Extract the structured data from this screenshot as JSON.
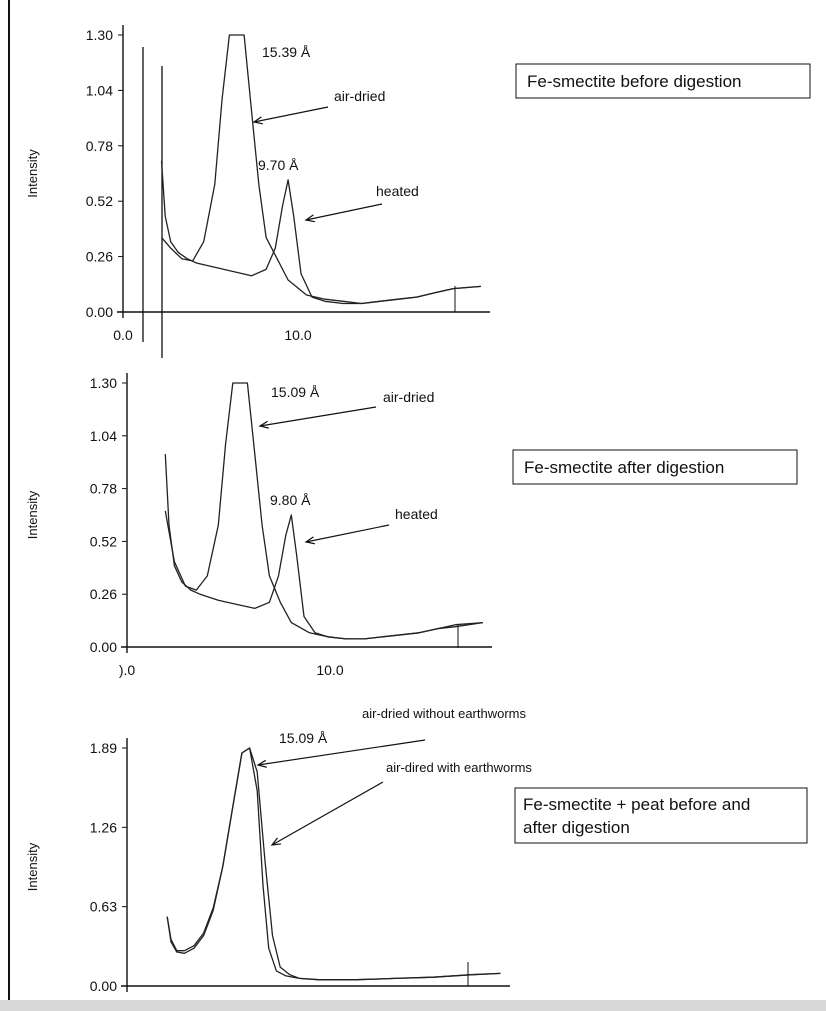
{
  "chart_data": [
    {
      "type": "line",
      "title": "",
      "xlabel": "",
      "ylabel": "Intensity",
      "xlim": [
        0.0,
        20.0
      ],
      "ylim": [
        0.0,
        1.3
      ],
      "yticks": [
        "1.30",
        "1.04",
        "0.78",
        "0.52",
        "0.26",
        "0.00"
      ],
      "xticks": [
        "0.0",
        "10.0"
      ],
      "box_label": "Fe-smectite before digestion",
      "annotations": [
        {
          "text": "15.39 Å",
          "x": 6.0,
          "y": 1.3
        },
        {
          "text": "air-dried",
          "x": 7.0,
          "y": 1.0
        },
        {
          "text": "9.70 Å",
          "x": 9.0,
          "y": 0.62
        },
        {
          "text": "heated",
          "x": 9.6,
          "y": 0.48
        }
      ],
      "series": [
        {
          "x": [
            2.1,
            2.6,
            3.2,
            3.8,
            4.4,
            5.0,
            5.4,
            5.8,
            6.2,
            6.6,
            7.0,
            7.4,
            7.8,
            8.4,
            9.0,
            10.0,
            11.0,
            12.0,
            13.0,
            14.0,
            15.0,
            16.0,
            17.0,
            18.0,
            19.5
          ],
          "y": [
            0.35,
            0.3,
            0.25,
            0.24,
            0.33,
            0.6,
            1.0,
            1.3,
            1.3,
            1.3,
            0.95,
            0.6,
            0.35,
            0.25,
            0.15,
            0.08,
            0.06,
            0.05,
            0.04,
            0.05,
            0.06,
            0.07,
            0.09,
            0.11,
            0.12
          ]
        },
        {
          "x": [
            2.1,
            2.3,
            2.6,
            3.0,
            3.5,
            4.0,
            5.0,
            6.0,
            7.0,
            7.8,
            8.3,
            8.7,
            9.0,
            9.3,
            9.7,
            10.3,
            11.0,
            12.0,
            13.0,
            14.0,
            15.0,
            16.0,
            17.0,
            18.0,
            19.5
          ],
          "y": [
            0.71,
            0.45,
            0.33,
            0.28,
            0.25,
            0.23,
            0.21,
            0.19,
            0.17,
            0.2,
            0.3,
            0.5,
            0.62,
            0.45,
            0.18,
            0.07,
            0.05,
            0.04,
            0.04,
            0.05,
            0.06,
            0.07,
            0.09,
            0.11,
            0.12
          ]
        }
      ]
    },
    {
      "type": "line",
      "title": "",
      "xlabel": "",
      "ylabel": "Intensity",
      "xlim": [
        0.0,
        20.0
      ],
      "ylim": [
        0.0,
        1.3
      ],
      "yticks": [
        "1.30",
        "1.04",
        "0.78",
        "0.52",
        "0.26",
        "0.00"
      ],
      "xticks": [
        ").0",
        "10.0"
      ],
      "box_label": "Fe-smectite after digestion",
      "annotations": [
        {
          "text": "15.09 Å",
          "x": 6.0,
          "y": 1.3
        },
        {
          "text": "air-dried",
          "x": 7.0,
          "y": 1.0
        },
        {
          "text": "9.80 Å",
          "x": 9.0,
          "y": 0.65
        },
        {
          "text": "heated",
          "x": 9.6,
          "y": 0.52
        }
      ],
      "series": [
        {
          "x": [
            2.1,
            2.6,
            3.2,
            3.8,
            4.4,
            5.0,
            5.4,
            5.8,
            6.2,
            6.6,
            7.0,
            7.4,
            7.8,
            8.4,
            9.0,
            10.0,
            11.0,
            12.0,
            13.0,
            14.0,
            15.0,
            16.0,
            17.0,
            18.0,
            19.5
          ],
          "y": [
            0.67,
            0.42,
            0.3,
            0.28,
            0.35,
            0.6,
            1.0,
            1.3,
            1.3,
            1.3,
            0.95,
            0.6,
            0.35,
            0.22,
            0.12,
            0.07,
            0.05,
            0.04,
            0.04,
            0.05,
            0.06,
            0.07,
            0.09,
            0.1,
            0.12
          ]
        },
        {
          "x": [
            2.1,
            2.3,
            2.6,
            3.0,
            3.5,
            4.0,
            5.0,
            6.0,
            7.0,
            7.8,
            8.3,
            8.7,
            9.0,
            9.3,
            9.7,
            10.3,
            11.0,
            12.0,
            13.0,
            14.0,
            15.0,
            16.0,
            17.0,
            18.0,
            19.5
          ],
          "y": [
            0.95,
            0.6,
            0.4,
            0.32,
            0.28,
            0.26,
            0.23,
            0.21,
            0.19,
            0.22,
            0.35,
            0.55,
            0.65,
            0.45,
            0.15,
            0.07,
            0.05,
            0.04,
            0.04,
            0.05,
            0.06,
            0.07,
            0.09,
            0.11,
            0.12
          ]
        }
      ]
    },
    {
      "type": "line",
      "title": "",
      "xlabel": "",
      "ylabel": "Intensity",
      "xlim": [
        0.0,
        20.0
      ],
      "ylim": [
        0.0,
        1.89
      ],
      "yticks": [
        "1.89",
        "1.26",
        "0.63",
        "0.00"
      ],
      "xticks": [],
      "box_label": "Fe-smectite + peat before and after digestion",
      "annotations": [
        {
          "text": "air-dried without earthworms",
          "x": 10.0,
          "y": 1.95
        },
        {
          "text": "15.09  Å",
          "x": 6.5,
          "y": 1.85
        },
        {
          "text": "air-dired with earthworms",
          "x": 10.5,
          "y": 1.72
        }
      ],
      "series": [
        {
          "x": [
            2.1,
            2.3,
            2.6,
            3.0,
            3.5,
            4.0,
            4.5,
            5.0,
            5.5,
            6.0,
            6.4,
            6.8,
            7.1,
            7.4,
            7.8,
            8.3,
            9.0,
            10.0,
            12.0,
            14.0,
            16.0,
            18.0,
            19.5
          ],
          "y": [
            0.55,
            0.35,
            0.27,
            0.26,
            0.3,
            0.4,
            0.6,
            0.95,
            1.4,
            1.85,
            1.89,
            1.55,
            0.8,
            0.3,
            0.12,
            0.08,
            0.06,
            0.05,
            0.05,
            0.06,
            0.07,
            0.09,
            0.1
          ]
        },
        {
          "x": [
            2.1,
            2.3,
            2.6,
            3.0,
            3.5,
            4.0,
            4.5,
            5.0,
            5.5,
            6.0,
            6.4,
            6.8,
            7.2,
            7.6,
            8.0,
            8.5,
            9.0,
            10.0,
            12.0,
            14.0,
            16.0,
            18.0,
            19.5
          ],
          "y": [
            0.55,
            0.37,
            0.28,
            0.28,
            0.32,
            0.42,
            0.62,
            0.95,
            1.4,
            1.85,
            1.89,
            1.7,
            1.0,
            0.4,
            0.15,
            0.09,
            0.06,
            0.05,
            0.05,
            0.06,
            0.07,
            0.09,
            0.1
          ]
        }
      ]
    }
  ]
}
